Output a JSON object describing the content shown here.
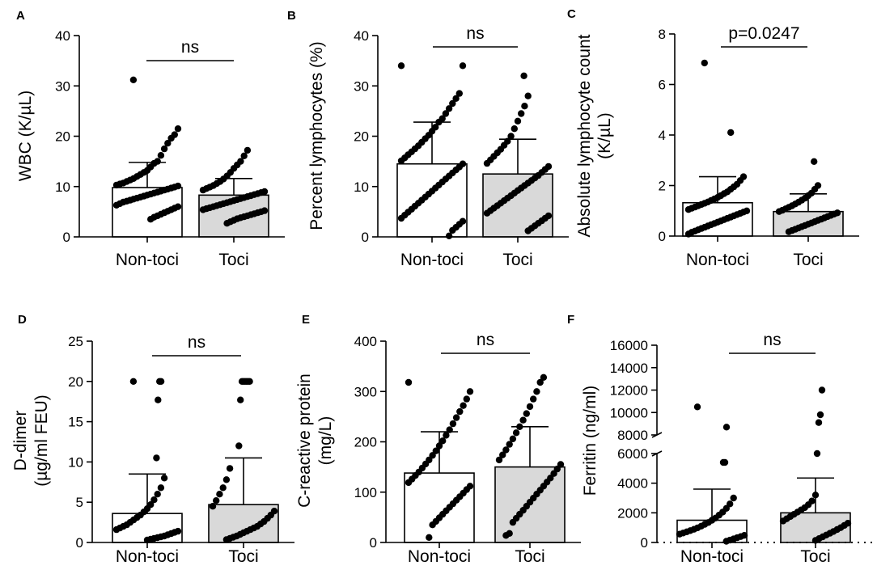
{
  "figure": {
    "background": "#ffffff",
    "bar_fill_control": "#ffffff",
    "bar_fill_toci": "#d9d9d9",
    "ink": "#000000"
  },
  "chart_data": [
    {
      "panel": "A",
      "type": "bar",
      "ylabel_lines": [
        "WBC (K/µL)"
      ],
      "categories": [
        "Non-toci",
        "Toci"
      ],
      "values": [
        9.8,
        8.3
      ],
      "sd": [
        5.0,
        3.3
      ],
      "ylim": [
        0,
        40
      ],
      "yticks": [
        0,
        10,
        20,
        30,
        40
      ],
      "sig": "ns",
      "points": [
        [
          31.2,
          21.5,
          20.3,
          19.6,
          18.6,
          17.5,
          16.2,
          15.0,
          14.6,
          13.9,
          13.2,
          12.8,
          12.4,
          12.0,
          11.6,
          11.3,
          11.0,
          10.7,
          10.5,
          10.3,
          10.1,
          9.9,
          9.7,
          9.5,
          9.3,
          9.1,
          8.9,
          8.7,
          8.5,
          8.3,
          8.1,
          7.9,
          7.7,
          7.5,
          7.3,
          7.1,
          6.9,
          6.6,
          6.3,
          6.0,
          5.7,
          5.4,
          5.1,
          4.8,
          4.5,
          4.2,
          3.9,
          3.5
        ],
        [
          17.2,
          16.1,
          15.0,
          14.3,
          13.6,
          12.8,
          12.1,
          11.5,
          11.0,
          10.6,
          10.2,
          9.9,
          9.6,
          9.3,
          9.0,
          8.8,
          8.6,
          8.4,
          8.2,
          8.0,
          7.8,
          7.6,
          7.4,
          7.2,
          7.0,
          6.8,
          6.6,
          6.4,
          6.2,
          6.0,
          5.8,
          5.6,
          5.4,
          5.2,
          5.0,
          4.8,
          4.6,
          4.4,
          4.2,
          4.0,
          3.8,
          3.6,
          3.3,
          3.0,
          2.7
        ]
      ]
    },
    {
      "panel": "B",
      "type": "bar",
      "ylabel_lines": [
        "Percent lymphocytes (%)"
      ],
      "categories": [
        "Non-toci",
        "Toci"
      ],
      "values": [
        14.5,
        12.5
      ],
      "sd": [
        8.3,
        6.9
      ],
      "ylim": [
        0,
        40
      ],
      "yticks": [
        0,
        10,
        20,
        30,
        40
      ],
      "sig": "ns",
      "points": [
        [
          34.0,
          34.0,
          28.5,
          27.5,
          26.5,
          25.5,
          24.5,
          23.5,
          22.8,
          21.8,
          21.0,
          20.2,
          19.5,
          18.8,
          18.1,
          17.5,
          16.9,
          16.3,
          15.7,
          15.1,
          14.5,
          13.9,
          13.3,
          12.7,
          12.1,
          11.5,
          10.9,
          10.3,
          9.7,
          9.1,
          8.5,
          7.9,
          7.3,
          6.7,
          6.1,
          5.5,
          4.9,
          4.3,
          3.7,
          3.1,
          2.5,
          1.9,
          1.3,
          0.2
        ],
        [
          32.0,
          28.0,
          26.0,
          24.5,
          23.0,
          21.5,
          20.0,
          19.0,
          18.2,
          17.4,
          16.7,
          16.0,
          15.3,
          14.6,
          14.0,
          13.4,
          12.8,
          12.2,
          11.7,
          11.2,
          10.7,
          10.2,
          9.7,
          9.2,
          8.7,
          8.2,
          7.7,
          7.2,
          6.7,
          6.2,
          5.7,
          5.2,
          4.7,
          4.2,
          3.7,
          3.2,
          2.7,
          2.2,
          1.7,
          1.2
        ]
      ]
    },
    {
      "panel": "C",
      "type": "bar",
      "ylabel_lines": [
        "Absolute lymphocyte count",
        "(K/µL)"
      ],
      "categories": [
        "Non-toci",
        "Toci"
      ],
      "values": [
        1.32,
        0.97
      ],
      "sd": [
        1.03,
        0.7
      ],
      "ylim": [
        0,
        8
      ],
      "yticks": [
        0,
        2,
        4,
        6,
        8
      ],
      "sig": "p=0.0247",
      "points": [
        [
          6.85,
          4.1,
          2.35,
          2.2,
          2.05,
          1.95,
          1.85,
          1.75,
          1.68,
          1.6,
          1.53,
          1.47,
          1.41,
          1.35,
          1.3,
          1.25,
          1.2,
          1.15,
          1.1,
          1.05,
          1.0,
          0.95,
          0.9,
          0.85,
          0.8,
          0.75,
          0.7,
          0.65,
          0.6,
          0.55,
          0.5,
          0.45,
          0.4,
          0.35,
          0.3,
          0.25,
          0.2,
          0.15,
          0.08
        ],
        [
          2.95,
          2.0,
          1.85,
          1.7,
          1.6,
          1.5,
          1.42,
          1.34,
          1.27,
          1.2,
          1.14,
          1.08,
          1.02,
          0.97,
          0.92,
          0.87,
          0.82,
          0.77,
          0.72,
          0.67,
          0.62,
          0.57,
          0.52,
          0.47,
          0.42,
          0.37,
          0.32,
          0.27,
          0.22,
          0.17
        ]
      ]
    },
    {
      "panel": "D",
      "type": "bar",
      "ylabel_lines": [
        "D-dimer",
        "(µg/ml FEU)"
      ],
      "categories": [
        "Non-toci",
        "Toci"
      ],
      "values": [
        3.6,
        4.7
      ],
      "sd": [
        4.9,
        5.8
      ],
      "ylim": [
        0,
        25
      ],
      "yticks": [
        0,
        5,
        10,
        15,
        20,
        25
      ],
      "sig": "ns",
      "points": [
        [
          20.0,
          20.0,
          20.0,
          17.7,
          10.5,
          8.0,
          6.8,
          6.0,
          5.3,
          4.7,
          4.2,
          3.8,
          3.4,
          3.1,
          2.8,
          2.5,
          2.2,
          2.0,
          1.8,
          1.6,
          1.4,
          1.25,
          1.1,
          0.95,
          0.8,
          0.7,
          0.6,
          0.5,
          0.4,
          0.3
        ],
        [
          20.0,
          20.0,
          20.0,
          20.0,
          20.0,
          20.0,
          17.7,
          12.0,
          9.2,
          7.8,
          6.8,
          6.0,
          5.2,
          4.5,
          3.9,
          3.4,
          3.0,
          2.6,
          2.3,
          2.0,
          1.8,
          1.6,
          1.4,
          1.2,
          1.0,
          0.8,
          0.65,
          0.5,
          0.35
        ]
      ]
    },
    {
      "panel": "E",
      "type": "bar",
      "ylabel_lines": [
        "C-reactive protein",
        "(mg/L)"
      ],
      "categories": [
        "Non-toci",
        "Toci"
      ],
      "values": [
        138,
        150
      ],
      "sd": [
        82,
        80
      ],
      "ylim": [
        0,
        400
      ],
      "yticks": [
        0,
        100,
        200,
        300,
        400
      ],
      "sig": "ns",
      "points": [
        [
          318,
          300,
          285,
          272,
          260,
          248,
          236,
          224,
          213,
          202,
          192,
          182,
          173,
          164,
          156,
          148,
          140,
          133,
          126,
          119,
          112,
          105,
          98,
          91,
          84,
          77,
          70,
          63,
          56,
          49,
          42,
          35,
          10
        ],
        [
          328,
          318,
          300,
          285,
          270,
          256,
          243,
          230,
          218,
          206,
          195,
          184,
          174,
          164,
          155,
          146,
          137,
          128,
          120,
          112,
          104,
          96,
          88,
          80,
          72,
          64,
          56,
          48,
          40,
          18,
          14
        ]
      ]
    },
    {
      "panel": "F",
      "type": "bar",
      "ylabel_lines": [
        "Ferritin (ng/ml)"
      ],
      "categories": [
        "Non-toci",
        "Toci"
      ],
      "values": [
        1500,
        2000
      ],
      "sd": [
        2100,
        2350
      ],
      "axis_break": {
        "lower": [
          0,
          6000
        ],
        "upper": [
          8000,
          16000
        ]
      },
      "yticks": [
        0,
        2000,
        4000,
        6000,
        8000,
        10000,
        12000,
        14000,
        16000
      ],
      "sig": "ns",
      "points": [
        [
          10500,
          8700,
          5400,
          5400,
          3000,
          2600,
          2300,
          2050,
          1850,
          1650,
          1500,
          1350,
          1220,
          1100,
          990,
          890,
          800,
          720,
          640,
          560,
          480,
          400,
          320,
          240,
          160,
          80
        ],
        [
          12000,
          9800,
          9100,
          6000,
          3200,
          2800,
          2550,
          2350,
          2200,
          2050,
          1900,
          1750,
          1600,
          1450,
          1300,
          1150,
          1000,
          870,
          740,
          620,
          500,
          380,
          260,
          140
        ]
      ]
    }
  ]
}
